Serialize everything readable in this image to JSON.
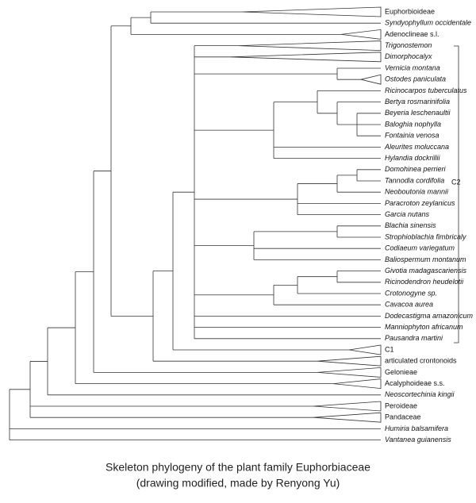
{
  "leaves": [
    "Euphorbioideae",
    "Syndyophyllum occidentale",
    "Adenoclineae s.l.",
    "Trigonostemon",
    "Dimorphocalyx",
    "Vernicia montana",
    "Ostodes paniculata",
    "Ricinocarpos tuberculatus",
    "Bertya rosmarinifolia",
    "Beyeria leschenaultii",
    "Baloghia nophylla",
    "Fontainia venosa",
    "Aleurites moluccana",
    "Hylandia dockrillii",
    "Domohinea perrieri",
    "Tannodia cordifolia",
    "Neoboutonia mannii",
    "Paracroton zeylanicus",
    "Garcia nutans",
    "Blachia sinensis",
    "Strophioblachia fimbricaly",
    "Codiaeum variegatum",
    "Baliospermum montanum",
    "Givotia madagascariensis",
    "Ricinodendron heudelotii",
    "Crotonogyne sp.",
    "Cavacoa aurea",
    "Dodecastigma amazonicum",
    "Manniophyton africanum",
    "Pausandra martini",
    "C1",
    "articulated crontonoids",
    "Gelonieae",
    "Acalyphoideae s.s.",
    "Neoscortechinia kingii",
    "Peroideae",
    "Pandaceae",
    "Humiria balsamifera",
    "Vantanea guianensis"
  ],
  "bracket_label": "C2",
  "caption": [
    "Skeleton phylogeny of the plant family Euphorbiaceae",
    "(drawing modified, made by Renyong Yu)"
  ]
}
